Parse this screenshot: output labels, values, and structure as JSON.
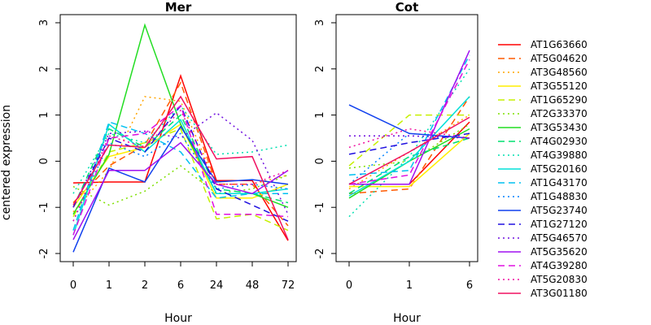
{
  "chart_data": {
    "type": "line",
    "ylabel": "centered expression",
    "xlabel": "Hour",
    "ylim": [
      -2,
      3
    ],
    "yticks": [
      -2,
      -1,
      0,
      1,
      2,
      3
    ],
    "legend_position": "right",
    "series_styles": [
      {
        "name": "AT1G63660",
        "color": "#ff0000",
        "dash": "solid"
      },
      {
        "name": "AT5G04620",
        "color": "#ff5a00",
        "dash": "dashed"
      },
      {
        "name": "AT3G48560",
        "color": "#ffa500",
        "dash": "dotted"
      },
      {
        "name": "AT3G55120",
        "color": "#ffee00",
        "dash": "solid"
      },
      {
        "name": "AT1G65290",
        "color": "#c6f000",
        "dash": "dashed"
      },
      {
        "name": "AT2G33370",
        "color": "#7fe000",
        "dash": "dotted"
      },
      {
        "name": "AT3G53430",
        "color": "#22dd22",
        "dash": "solid"
      },
      {
        "name": "AT4G02930",
        "color": "#00e070",
        "dash": "dashed"
      },
      {
        "name": "AT4G39880",
        "color": "#00e0b0",
        "dash": "dotted"
      },
      {
        "name": "AT5G20160",
        "color": "#00e0d8",
        "dash": "solid"
      },
      {
        "name": "AT1G43170",
        "color": "#00c0f0",
        "dash": "dashed"
      },
      {
        "name": "AT1G48830",
        "color": "#0080ff",
        "dash": "dotted"
      },
      {
        "name": "AT5G23740",
        "color": "#1040ee",
        "dash": "solid"
      },
      {
        "name": "AT1G27120",
        "color": "#2010e0",
        "dash": "dashed"
      },
      {
        "name": "AT5G46570",
        "color": "#7010e0",
        "dash": "dotted"
      },
      {
        "name": "AT5G35620",
        "color": "#a010f0",
        "dash": "solid"
      },
      {
        "name": "AT4G39280",
        "color": "#e010e0",
        "dash": "dashed"
      },
      {
        "name": "AT5G20830",
        "color": "#f010a0",
        "dash": "dotted"
      },
      {
        "name": "AT3G01180",
        "color": "#f01060",
        "dash": "solid"
      }
    ],
    "panels": [
      {
        "title": "Mer",
        "x_labels": [
          "0",
          "1",
          "2",
          "6",
          "24",
          "48",
          "72"
        ],
        "series": [
          {
            "name": "AT1G63660",
            "values": [
              -0.47,
              -0.45,
              -0.45,
              1.85,
              -0.42,
              -0.42,
              -1.72
            ]
          },
          {
            "name": "AT5G04620",
            "values": [
              -0.9,
              -0.1,
              0.35,
              1.7,
              -0.5,
              -0.5,
              -1.4
            ]
          },
          {
            "name": "AT3G48560",
            "values": [
              -1.1,
              -0.2,
              1.4,
              1.3,
              -0.5,
              -0.5,
              -0.3
            ]
          },
          {
            "name": "AT3G55120",
            "values": [
              -1.0,
              0.1,
              0.3,
              0.8,
              -0.8,
              -0.8,
              -0.5
            ]
          },
          {
            "name": "AT1G65290",
            "values": [
              -1.2,
              0.2,
              0.4,
              0.7,
              -1.25,
              -1.15,
              -1.5
            ]
          },
          {
            "name": "AT2G33370",
            "values": [
              -0.55,
              -0.95,
              -0.65,
              -0.1,
              -0.7,
              -0.6,
              -0.3
            ]
          },
          {
            "name": "AT3G53430",
            "values": [
              -1.15,
              0.15,
              2.95,
              0.8,
              -0.7,
              -0.7,
              -1.0
            ]
          },
          {
            "name": "AT4G02930",
            "values": [
              -1.0,
              0.7,
              0.3,
              1.0,
              -0.6,
              -0.7,
              -0.9
            ]
          },
          {
            "name": "AT4G39880",
            "values": [
              -0.7,
              0.6,
              0.4,
              1.2,
              0.15,
              0.2,
              0.35
            ]
          },
          {
            "name": "AT5G20160",
            "values": [
              -1.6,
              0.8,
              0.2,
              0.9,
              -0.7,
              -0.7,
              -0.6
            ]
          },
          {
            "name": "AT1G43170",
            "values": [
              -1.5,
              0.85,
              0.6,
              0.2,
              -0.8,
              -0.7,
              -0.7
            ]
          },
          {
            "name": "AT1G48830",
            "values": [
              -1.3,
              0.4,
              0.1,
              0.6,
              -0.6,
              -0.5,
              -0.6
            ]
          },
          {
            "name": "AT5G23740",
            "values": [
              -1.97,
              -0.15,
              -0.45,
              0.75,
              -0.45,
              -0.4,
              -0.5
            ]
          },
          {
            "name": "AT1G27120",
            "values": [
              -1.0,
              0.5,
              0.2,
              1.2,
              -0.6,
              -0.95,
              -1.3
            ]
          },
          {
            "name": "AT5G46570",
            "values": [
              -1.0,
              0.6,
              0.65,
              0.5,
              1.05,
              0.45,
              -1.15
            ]
          },
          {
            "name": "AT5G35620",
            "values": [
              -1.7,
              -0.2,
              -0.2,
              0.4,
              -0.5,
              -0.7,
              -0.2
            ]
          },
          {
            "name": "AT4G39280",
            "values": [
              -1.6,
              0.5,
              0.6,
              1.2,
              -1.15,
              -1.15,
              -1.2
            ]
          },
          {
            "name": "AT5G20830",
            "values": [
              -1.3,
              0.55,
              0.3,
              1.1,
              -0.5,
              -0.5,
              -0.2
            ]
          },
          {
            "name": "AT3G01180",
            "values": [
              -0.95,
              0.35,
              0.3,
              1.4,
              0.05,
              0.1,
              -1.7
            ]
          }
        ]
      },
      {
        "title": "Cot",
        "x_labels": [
          "0",
          "1",
          "6"
        ],
        "series": [
          {
            "name": "AT1G63660",
            "values": [
              -0.5,
              -0.5,
              0.85
            ]
          },
          {
            "name": "AT5G04620",
            "values": [
              -0.7,
              -0.6,
              1.4
            ]
          },
          {
            "name": "AT3G48560",
            "values": [
              -0.6,
              0.2,
              1.0
            ]
          },
          {
            "name": "AT3G55120",
            "values": [
              -0.55,
              -0.55,
              0.6
            ]
          },
          {
            "name": "AT1G65290",
            "values": [
              -0.1,
              1.0,
              1.0
            ]
          },
          {
            "name": "AT2G33370",
            "values": [
              -0.15,
              0.0,
              0.8
            ]
          },
          {
            "name": "AT3G53430",
            "values": [
              -0.8,
              0.0,
              0.7
            ]
          },
          {
            "name": "AT4G02930",
            "values": [
              -0.7,
              0.1,
              0.5
            ]
          },
          {
            "name": "AT4G39880",
            "values": [
              -1.2,
              0.1,
              2.0
            ]
          },
          {
            "name": "AT5G20160",
            "values": [
              -0.75,
              0.0,
              1.4
            ]
          },
          {
            "name": "AT1G43170",
            "values": [
              -0.3,
              -0.2,
              2.3
            ]
          },
          {
            "name": "AT1G48830",
            "values": [
              -0.5,
              0.6,
              0.5
            ]
          },
          {
            "name": "AT5G23740",
            "values": [
              1.22,
              0.6,
              0.5
            ]
          },
          {
            "name": "AT1G27120",
            "values": [
              0.15,
              0.4,
              0.6
            ]
          },
          {
            "name": "AT5G46570",
            "values": [
              0.55,
              0.55,
              0.5
            ]
          },
          {
            "name": "AT5G35620",
            "values": [
              -0.5,
              -0.5,
              2.4
            ]
          },
          {
            "name": "AT4G39280",
            "values": [
              -0.5,
              -0.3,
              2.2
            ]
          },
          {
            "name": "AT5G20830",
            "values": [
              0.3,
              0.7,
              0.5
            ]
          },
          {
            "name": "AT3G01180",
            "values": [
              -0.5,
              0.2,
              0.95
            ]
          }
        ]
      }
    ]
  }
}
